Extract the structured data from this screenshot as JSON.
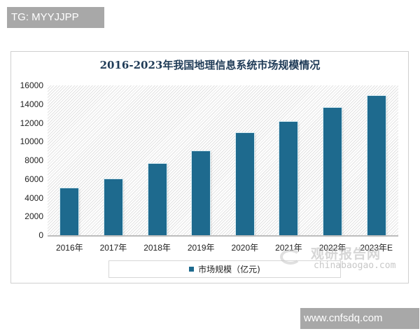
{
  "watermarks": {
    "top_tag": "TG: MYYJJPP",
    "bottom_tag": "www.cnfsdq.com",
    "logo_cn": "观研报告网",
    "logo_en": "chinabaogao.com"
  },
  "colors": {
    "bar": "#1e6a8e",
    "title": "#1f3b57",
    "tag_bg": "#a8a8a8"
  },
  "chart_data": {
    "type": "bar",
    "title": "2016-2023年我国地理信息系统市场规模情况",
    "xlabel": "",
    "ylabel": "",
    "categories": [
      "2016年",
      "2017年",
      "2018年",
      "2019年",
      "2020年",
      "2021年",
      "2022年",
      "2023年E"
    ],
    "series": [
      {
        "name": "市场规模（亿元)",
        "values": [
          5000,
          6000,
          7600,
          9000,
          10900,
          12100,
          13600,
          14900
        ]
      }
    ],
    "ylim": [
      0,
      16000
    ],
    "yticks": [
      0,
      2000,
      4000,
      6000,
      8000,
      10000,
      12000,
      14000,
      16000
    ],
    "ytick_labels": [
      "0",
      "2000",
      "4000",
      "6000",
      "8000",
      "10000",
      "12000",
      "14000",
      "16000"
    ],
    "grid": false,
    "background": "diagonal hatch",
    "legend_position": "bottom",
    "legend": [
      "市场规模（亿元)"
    ]
  }
}
